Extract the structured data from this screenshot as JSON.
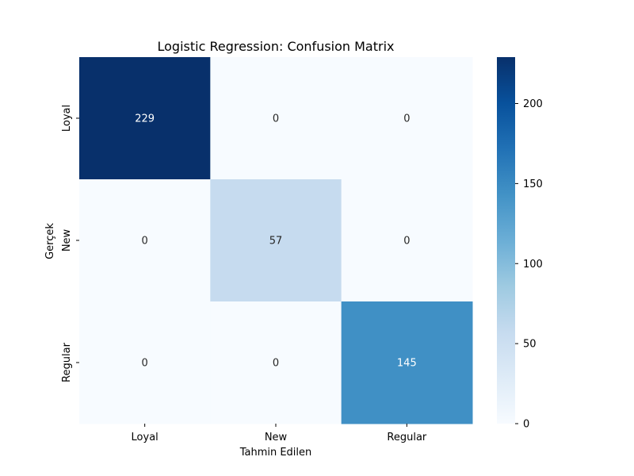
{
  "chart_data": {
    "type": "heatmap",
    "title": "Logistic Regression: Confusion Matrix",
    "xlabel": "Tahmin Edilen",
    "ylabel": "Gerçek",
    "x_categories": [
      "Loyal",
      "New",
      "Regular"
    ],
    "y_categories": [
      "Loyal",
      "New",
      "Regular"
    ],
    "values": [
      [
        229,
        0,
        0
      ],
      [
        0,
        57,
        0
      ],
      [
        0,
        0,
        145
      ]
    ],
    "colormap": "Blues",
    "colorbar": {
      "range": [
        0,
        229
      ],
      "ticks": [
        0,
        50,
        100,
        150,
        200
      ]
    }
  }
}
